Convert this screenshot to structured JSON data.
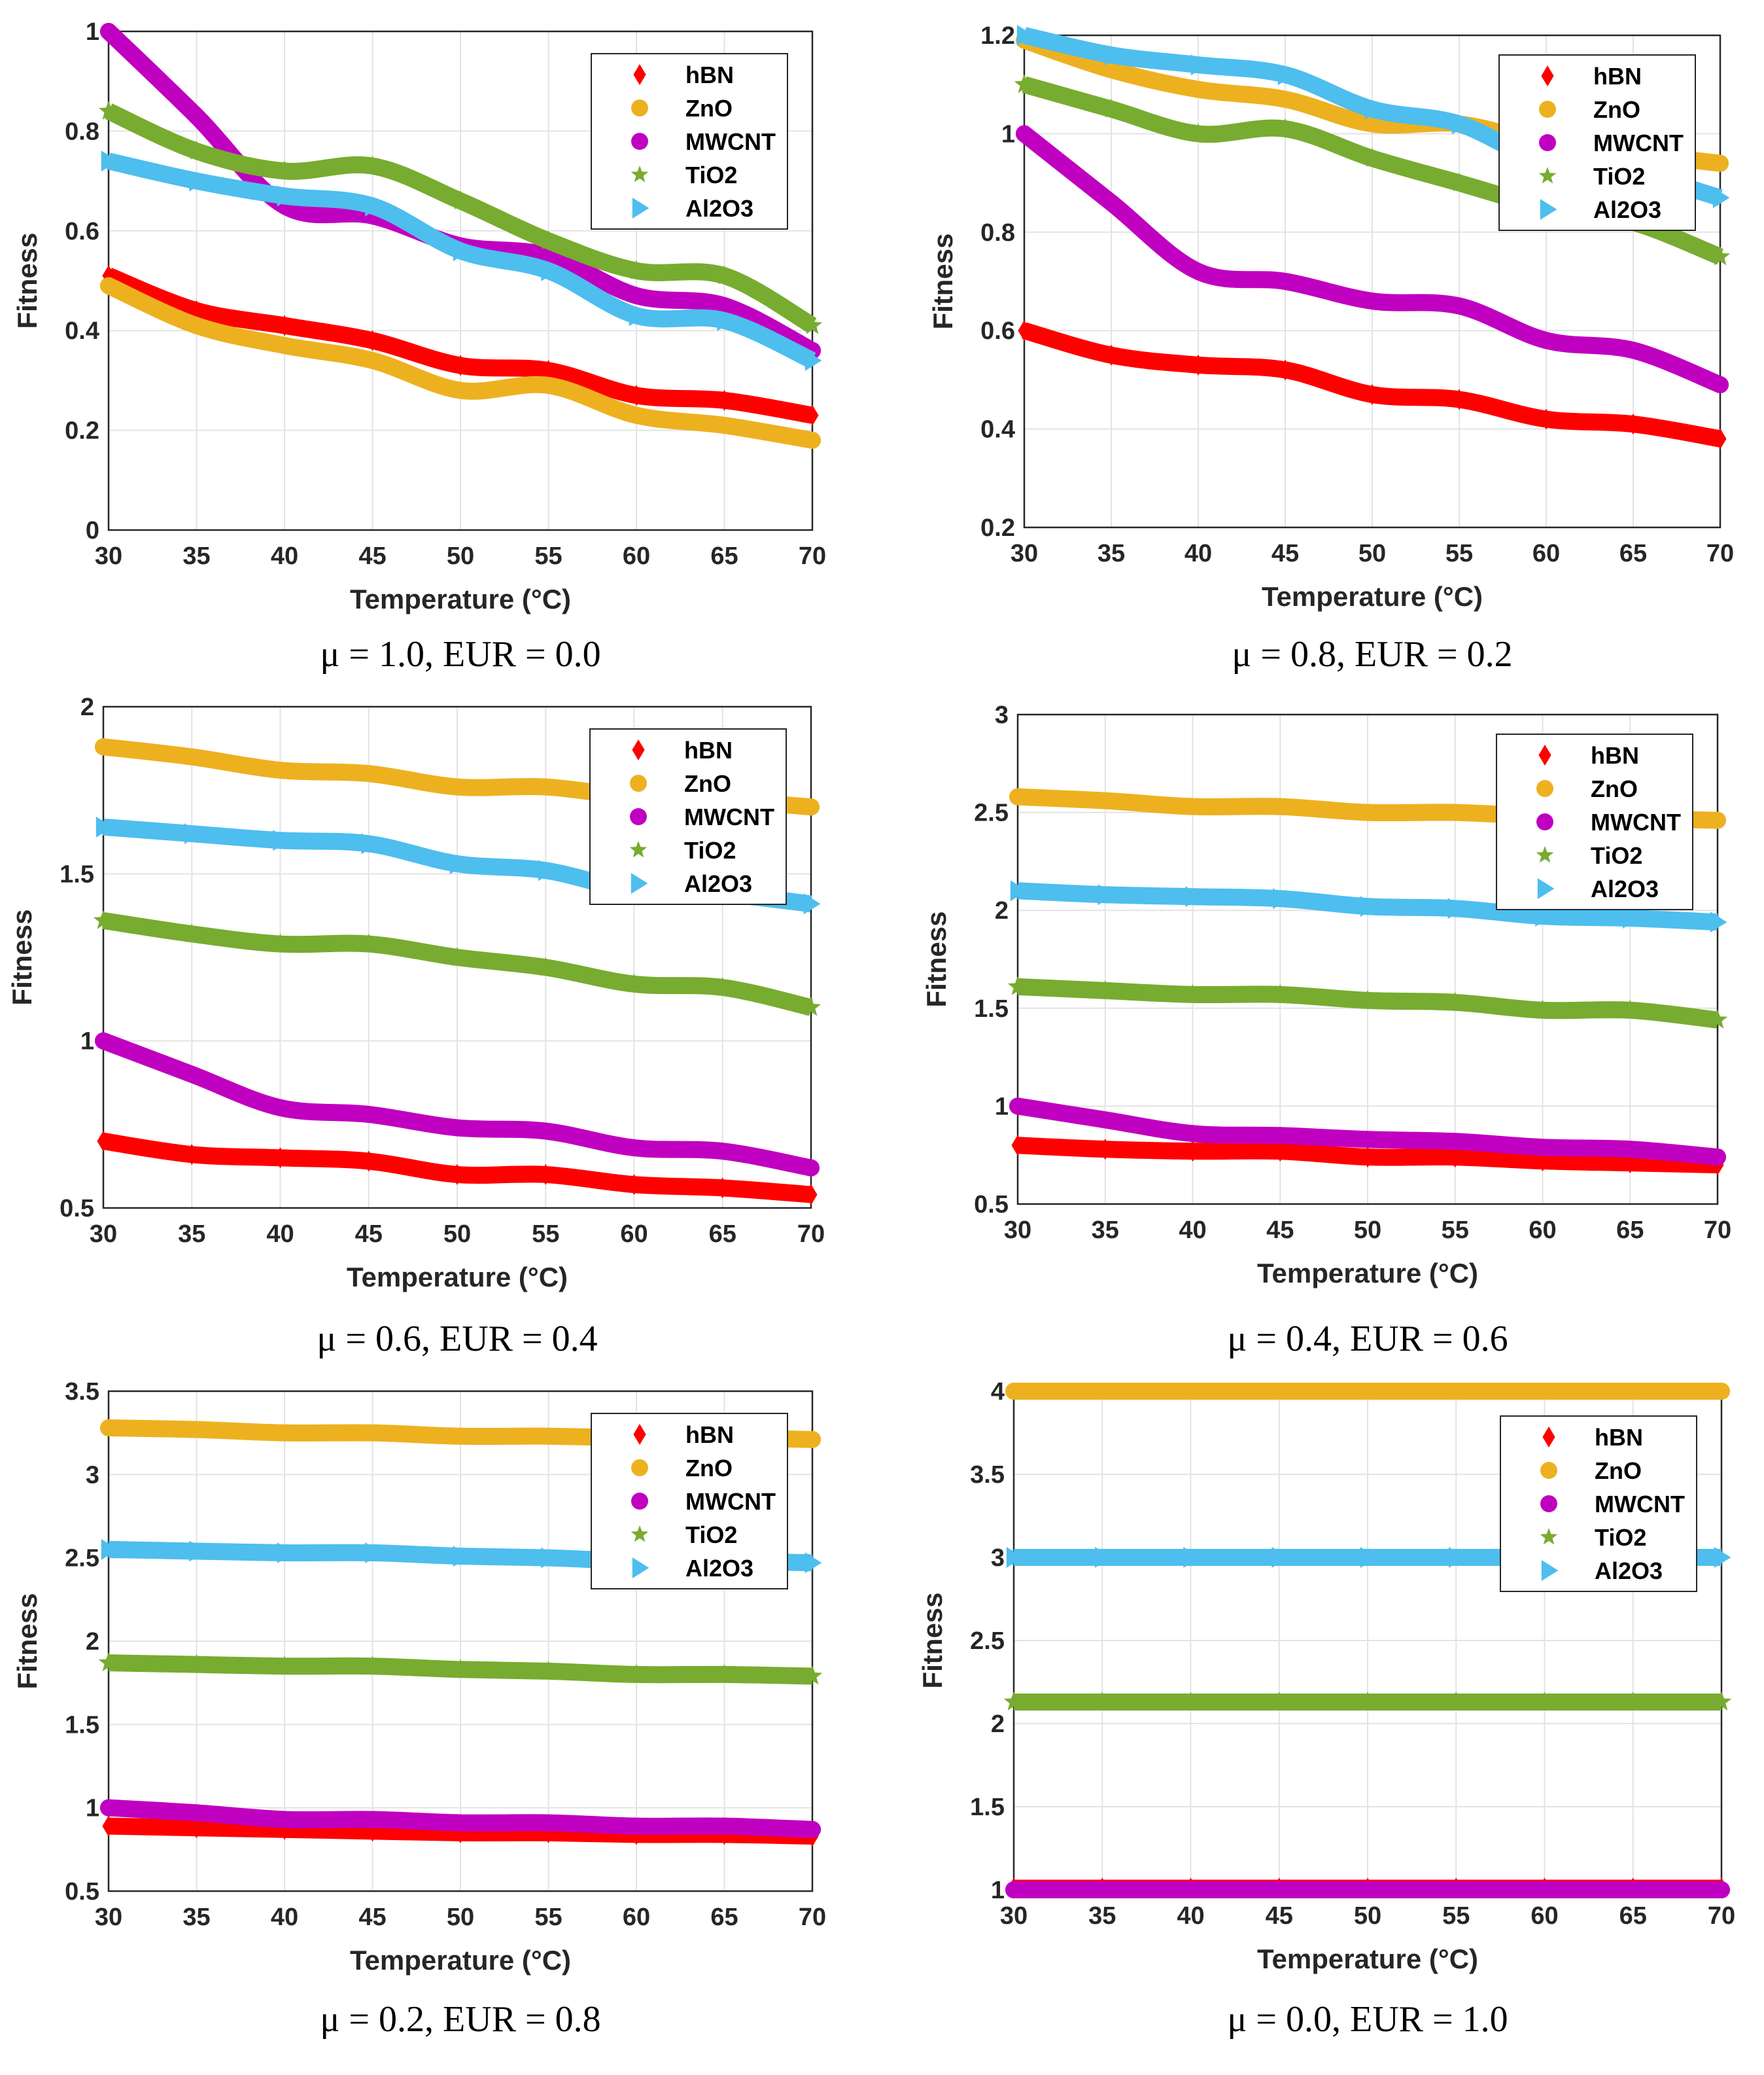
{
  "chart_data": [
    {
      "type": "line",
      "caption": "μ = 1.0, EUR = 0.0",
      "xlabel": "Temperature (°C)",
      "ylabel": "Fitness",
      "xlim": [
        30,
        70
      ],
      "ylim": [
        0,
        1
      ],
      "xticks": [
        "30",
        "35",
        "40",
        "45",
        "50",
        "55",
        "60",
        "65",
        "70"
      ],
      "yticks": [
        "0",
        "0.2",
        "0.4",
        "0.6",
        "0.8",
        "1"
      ],
      "yticks_values": [
        0,
        0.2,
        0.4,
        0.6,
        0.8,
        1
      ],
      "grid": true,
      "legend": "top-right",
      "x": [
        30,
        35,
        40,
        45,
        50,
        55,
        60,
        65,
        70
      ],
      "series": [
        {
          "name": "hBN",
          "values": [
            0.51,
            0.44,
            0.41,
            0.38,
            0.33,
            0.32,
            0.27,
            0.26,
            0.23
          ]
        },
        {
          "name": "ZnO",
          "values": [
            0.49,
            0.41,
            0.37,
            0.34,
            0.28,
            0.29,
            0.23,
            0.21,
            0.18
          ]
        },
        {
          "name": "MWCNT",
          "values": [
            1.0,
            0.83,
            0.65,
            0.63,
            0.57,
            0.55,
            0.47,
            0.45,
            0.36
          ]
        },
        {
          "name": "TiO2",
          "values": [
            0.84,
            0.76,
            0.72,
            0.73,
            0.66,
            0.58,
            0.52,
            0.51,
            0.41
          ]
        },
        {
          "name": "Al2O3",
          "values": [
            0.74,
            0.7,
            0.67,
            0.65,
            0.56,
            0.52,
            0.43,
            0.42,
            0.34
          ]
        }
      ]
    },
    {
      "type": "line",
      "caption": "μ = 0.8, EUR = 0.2",
      "xlabel": "Temperature (°C)",
      "ylabel": "Fitness",
      "xlim": [
        30,
        70
      ],
      "ylim": [
        0.2,
        1.2
      ],
      "xticks": [
        "30",
        "35",
        "40",
        "45",
        "50",
        "55",
        "60",
        "65",
        "70"
      ],
      "yticks": [
        "0.2",
        "0.4",
        "0.6",
        "0.8",
        "1",
        "1.2"
      ],
      "yticks_values": [
        0.2,
        0.4,
        0.6,
        0.8,
        1,
        1.2
      ],
      "grid": true,
      "legend": "top-right",
      "x": [
        30,
        35,
        40,
        45,
        50,
        55,
        60,
        65,
        70
      ],
      "series": [
        {
          "name": "hBN",
          "values": [
            0.6,
            0.55,
            0.53,
            0.52,
            0.47,
            0.46,
            0.42,
            0.41,
            0.38
          ]
        },
        {
          "name": "ZnO",
          "values": [
            1.19,
            1.13,
            1.09,
            1.07,
            1.02,
            1.02,
            0.98,
            0.96,
            0.94
          ]
        },
        {
          "name": "MWCNT",
          "values": [
            1.0,
            0.86,
            0.72,
            0.7,
            0.66,
            0.65,
            0.58,
            0.56,
            0.49
          ]
        },
        {
          "name": "TiO2",
          "values": [
            1.1,
            1.05,
            1.0,
            1.01,
            0.95,
            0.9,
            0.85,
            0.82,
            0.75
          ]
        },
        {
          "name": "Al2O3",
          "values": [
            1.2,
            1.16,
            1.14,
            1.12,
            1.05,
            1.02,
            0.94,
            0.92,
            0.87
          ]
        }
      ]
    },
    {
      "type": "line",
      "caption": "μ = 0.6, EUR = 0.4",
      "xlabel": "Temperature (°C)",
      "ylabel": "Fitness",
      "xlim": [
        30,
        70
      ],
      "ylim": [
        0.5,
        2
      ],
      "xticks": [
        "30",
        "35",
        "40",
        "45",
        "50",
        "55",
        "60",
        "65",
        "70"
      ],
      "yticks": [
        "0.5",
        "1",
        "1.5",
        "2"
      ],
      "yticks_values": [
        0.5,
        1,
        1.5,
        2
      ],
      "grid": true,
      "legend": "top-right",
      "x": [
        30,
        35,
        40,
        45,
        50,
        55,
        60,
        65,
        70
      ],
      "series": [
        {
          "name": "hBN",
          "values": [
            0.7,
            0.66,
            0.65,
            0.64,
            0.6,
            0.6,
            0.57,
            0.56,
            0.54
          ]
        },
        {
          "name": "ZnO",
          "values": [
            1.88,
            1.85,
            1.81,
            1.8,
            1.76,
            1.76,
            1.73,
            1.72,
            1.7
          ]
        },
        {
          "name": "MWCNT",
          "values": [
            1.0,
            0.9,
            0.8,
            0.78,
            0.74,
            0.73,
            0.68,
            0.67,
            0.62
          ]
        },
        {
          "name": "TiO2",
          "values": [
            1.36,
            1.32,
            1.29,
            1.29,
            1.25,
            1.22,
            1.17,
            1.16,
            1.1
          ]
        },
        {
          "name": "Al2O3",
          "values": [
            1.64,
            1.62,
            1.6,
            1.59,
            1.53,
            1.51,
            1.45,
            1.44,
            1.41
          ]
        }
      ]
    },
    {
      "type": "line",
      "caption": "μ = 0.4, EUR = 0.6",
      "xlabel": "Temperature (°C)",
      "ylabel": "Fitness",
      "xlim": [
        30,
        70
      ],
      "ylim": [
        0.5,
        3
      ],
      "xticks": [
        "30",
        "35",
        "40",
        "45",
        "50",
        "55",
        "60",
        "65",
        "70"
      ],
      "yticks": [
        "0.5",
        "1",
        "1.5",
        "2",
        "2.5",
        "3"
      ],
      "yticks_values": [
        0.5,
        1,
        1.5,
        2,
        2.5,
        3
      ],
      "grid": true,
      "legend": "top-right",
      "x": [
        30,
        35,
        40,
        45,
        50,
        55,
        60,
        65,
        70
      ],
      "series": [
        {
          "name": "hBN",
          "values": [
            0.8,
            0.78,
            0.77,
            0.77,
            0.74,
            0.74,
            0.72,
            0.71,
            0.7
          ]
        },
        {
          "name": "ZnO",
          "values": [
            2.58,
            2.56,
            2.53,
            2.53,
            2.5,
            2.5,
            2.48,
            2.47,
            2.46
          ]
        },
        {
          "name": "MWCNT",
          "values": [
            1.0,
            0.93,
            0.86,
            0.85,
            0.83,
            0.82,
            0.79,
            0.78,
            0.74
          ]
        },
        {
          "name": "TiO2",
          "values": [
            1.61,
            1.59,
            1.57,
            1.57,
            1.54,
            1.53,
            1.49,
            1.49,
            1.44
          ]
        },
        {
          "name": "Al2O3",
          "values": [
            2.1,
            2.08,
            2.07,
            2.06,
            2.02,
            2.01,
            1.97,
            1.96,
            1.94
          ]
        }
      ]
    },
    {
      "type": "line",
      "caption": "μ = 0.2, EUR = 0.8",
      "xlabel": "Temperature (°C)",
      "ylabel": "Fitness",
      "xlim": [
        30,
        70
      ],
      "ylim": [
        0.5,
        3.5
      ],
      "xticks": [
        "30",
        "35",
        "40",
        "45",
        "50",
        "55",
        "60",
        "65",
        "70"
      ],
      "yticks": [
        "0.5",
        "1",
        "1.5",
        "2",
        "2.5",
        "3",
        "3.5"
      ],
      "yticks_values": [
        0.5,
        1,
        1.5,
        2,
        2.5,
        3,
        3.5
      ],
      "grid": true,
      "legend": "top-right",
      "x": [
        30,
        35,
        40,
        45,
        50,
        55,
        60,
        65,
        70
      ],
      "series": [
        {
          "name": "hBN",
          "values": [
            0.89,
            0.88,
            0.87,
            0.86,
            0.85,
            0.85,
            0.84,
            0.84,
            0.83
          ]
        },
        {
          "name": "ZnO",
          "values": [
            3.28,
            3.27,
            3.25,
            3.25,
            3.23,
            3.23,
            3.22,
            3.22,
            3.21
          ]
        },
        {
          "name": "MWCNT",
          "values": [
            1.0,
            0.97,
            0.93,
            0.93,
            0.91,
            0.91,
            0.89,
            0.89,
            0.87
          ]
        },
        {
          "name": "TiO2",
          "values": [
            1.87,
            1.86,
            1.85,
            1.85,
            1.83,
            1.82,
            1.8,
            1.8,
            1.79
          ]
        },
        {
          "name": "Al2O3",
          "values": [
            2.55,
            2.54,
            2.53,
            2.53,
            2.51,
            2.5,
            2.48,
            2.48,
            2.47
          ]
        }
      ]
    },
    {
      "type": "line",
      "caption": "μ = 0.0, EUR = 1.0",
      "xlabel": "Temperature (°C)",
      "ylabel": "Fitness",
      "xlim": [
        30,
        70
      ],
      "ylim": [
        1,
        4
      ],
      "xticks": [
        "30",
        "35",
        "40",
        "45",
        "50",
        "55",
        "60",
        "65",
        "70"
      ],
      "yticks": [
        "1",
        "1.5",
        "2",
        "2.5",
        "3",
        "3.5",
        "4"
      ],
      "yticks_values": [
        1,
        1.5,
        2,
        2.5,
        3,
        3.5,
        4
      ],
      "grid": true,
      "legend": "top-right",
      "x": [
        30,
        35,
        40,
        45,
        50,
        55,
        60,
        65,
        70
      ],
      "series": [
        {
          "name": "hBN",
          "values": [
            1.01,
            1.01,
            1.01,
            1.01,
            1.01,
            1.01,
            1.01,
            1.01,
            1.01
          ]
        },
        {
          "name": "ZnO",
          "values": [
            4,
            4,
            4,
            4,
            4,
            4,
            4,
            4,
            4
          ]
        },
        {
          "name": "MWCNT",
          "values": [
            1,
            1,
            1,
            1,
            1,
            1,
            1,
            1,
            1
          ]
        },
        {
          "name": "TiO2",
          "values": [
            2.13,
            2.13,
            2.13,
            2.13,
            2.13,
            2.13,
            2.13,
            2.13,
            2.13
          ]
        },
        {
          "name": "Al2O3",
          "values": [
            3,
            3,
            3,
            3,
            3,
            3,
            3,
            3,
            3
          ]
        }
      ]
    }
  ],
  "series_style": {
    "hBN": {
      "color": "#ff0000",
      "marker": "diamond"
    },
    "ZnO": {
      "color": "#edb120",
      "marker": "circle"
    },
    "MWCNT": {
      "color": "#c000c0",
      "marker": "circle"
    },
    "TiO2": {
      "color": "#77ac30",
      "marker": "star"
    },
    "Al2O3": {
      "color": "#4dbeee",
      "marker": "triangle-right"
    }
  }
}
